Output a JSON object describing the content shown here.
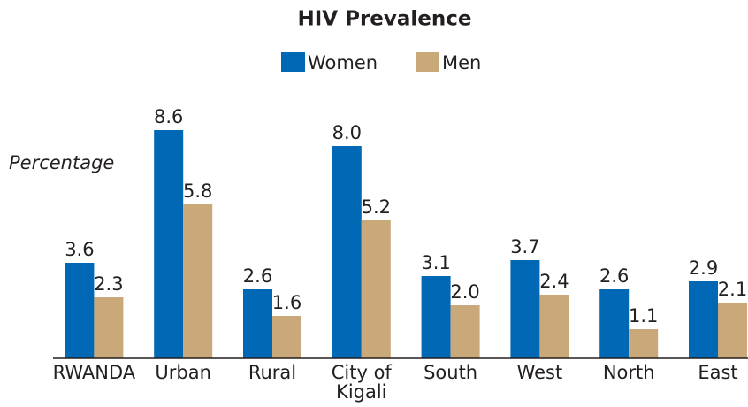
{
  "chart_data": {
    "type": "bar",
    "title": "HIV Prevalence",
    "y_label": "Percentage",
    "categories": [
      "RWANDA",
      "Urban",
      "Rural",
      "City of Kigali",
      "South",
      "West",
      "North",
      "East"
    ],
    "series": [
      {
        "name": "Women",
        "color": "#0068b5",
        "values": [
          3.6,
          8.6,
          2.6,
          8.0,
          3.1,
          3.7,
          2.6,
          2.9
        ],
        "value_labels": [
          "3.6",
          "8.6",
          "2.6",
          "8.0",
          "3.1",
          "3.7",
          "2.6",
          "2.9"
        ]
      },
      {
        "name": "Men",
        "color": "#c9a97a",
        "values": [
          2.3,
          5.8,
          1.6,
          5.2,
          2.0,
          2.4,
          1.1,
          2.1
        ],
        "value_labels": [
          "2.3",
          "5.8",
          "1.6",
          "5.2",
          "2.0",
          "2.4",
          "1.1",
          "2.1"
        ]
      }
    ],
    "ylim": [
      0,
      10
    ],
    "legend": "top"
  }
}
